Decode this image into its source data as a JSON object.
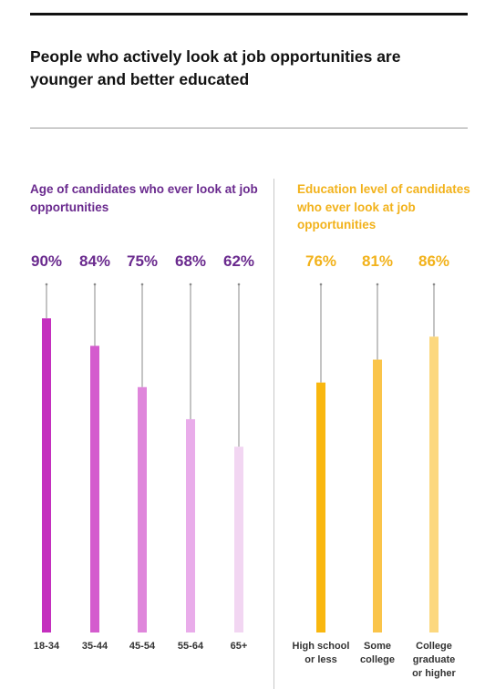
{
  "headline": "People who actively look at job opportunities are younger and better educated",
  "chart_data": [
    {
      "type": "bar",
      "title": "Age of candidates who ever look at job opportunities",
      "categories": [
        "18-34",
        "35-44",
        "45-54",
        "55-64",
        "65+"
      ],
      "values": [
        90,
        84,
        75,
        68,
        62
      ],
      "value_labels": [
        "90%",
        "84%",
        "75%",
        "68%",
        "62%"
      ],
      "unit": "%",
      "colors": [
        "#c42fbe",
        "#d45cce",
        "#df86db",
        "#e9acea",
        "#f2d6f2"
      ],
      "label_color": "#6a2a8e",
      "ylim": [
        0,
        100
      ],
      "grid": false
    },
    {
      "type": "bar",
      "title": "Education level of candidates who ever look at job opportunities",
      "categories": [
        [
          "High school",
          "or less"
        ],
        [
          "Some",
          "college"
        ],
        [
          "College",
          "graduate",
          "or higher"
        ]
      ],
      "values": [
        76,
        81,
        86
      ],
      "value_labels": [
        "76%",
        "81%",
        "86%"
      ],
      "unit": "%",
      "colors": [
        "#f9b70f",
        "#fac44a",
        "#fcd87f"
      ],
      "label_color": "#f2b21b",
      "ylim": [
        0,
        100
      ],
      "grid": false
    }
  ]
}
